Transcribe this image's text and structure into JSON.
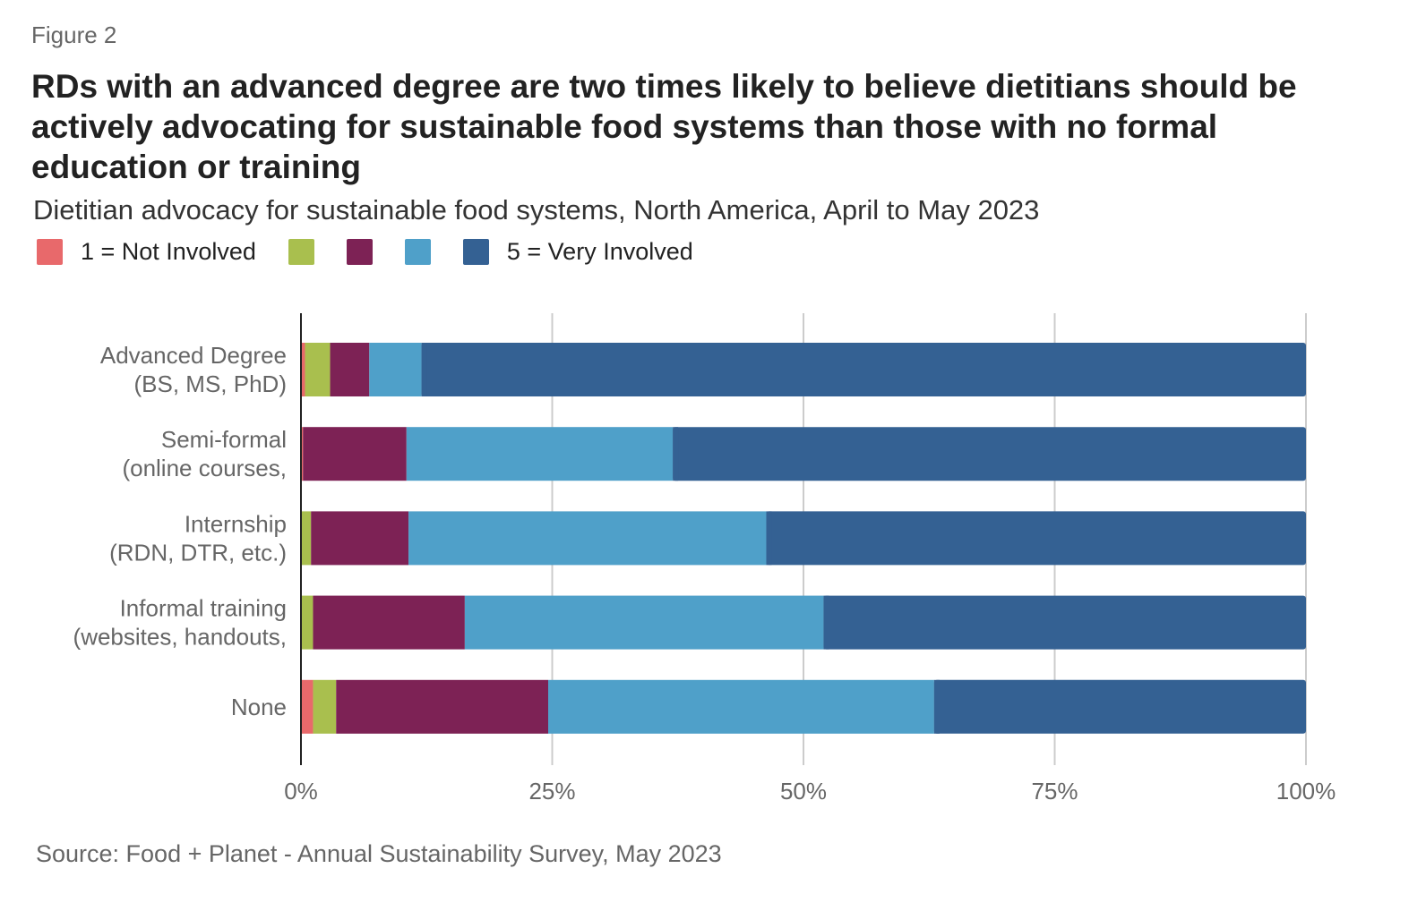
{
  "figure_label": "Figure 2",
  "title": "RDs with an advanced degree are two times likely to believe dietitians should be actively advocating for sustainable food systems than those with no formal education or training",
  "subtitle": "Dietitian advocacy for sustainable food systems, North America, April to May 2023",
  "source": "Source: Food + Planet - Annual Sustainability Survey, May 2023",
  "chart_data": {
    "type": "bar",
    "orientation": "horizontal",
    "stacked": "percent",
    "categories": [
      [
        "Advanced Degree",
        "(BS, MS, PhD)"
      ],
      [
        "Semi-formal",
        "(online courses,"
      ],
      [
        "Internship",
        "(RDN, DTR, etc.)"
      ],
      [
        "Informal training",
        "(websites, handouts,"
      ],
      [
        "None"
      ]
    ],
    "series": [
      {
        "name": "1 = Not Involved",
        "color": "#E8696B",
        "values": [
          0.4,
          0.2,
          0,
          0,
          1.2
        ]
      },
      {
        "name": "",
        "color": "#A9BF4E",
        "values": [
          2.5,
          0,
          1.0,
          1.2,
          2.3
        ]
      },
      {
        "name": "",
        "color": "#7D2255",
        "values": [
          3.9,
          10.3,
          9.7,
          15.1,
          21.1
        ]
      },
      {
        "name": "",
        "color": "#4FA0C9",
        "values": [
          5.2,
          26.5,
          35.6,
          35.7,
          38.4
        ]
      },
      {
        "name": "5 = Very Involved",
        "color": "#346193",
        "values": [
          88.0,
          63.0,
          53.7,
          48.0,
          37.0
        ]
      }
    ],
    "xlim": [
      0,
      100
    ],
    "xticks": [
      "0%",
      "25%",
      "50%",
      "75%",
      "100%"
    ],
    "grid": true,
    "legend_position": "top-left"
  }
}
